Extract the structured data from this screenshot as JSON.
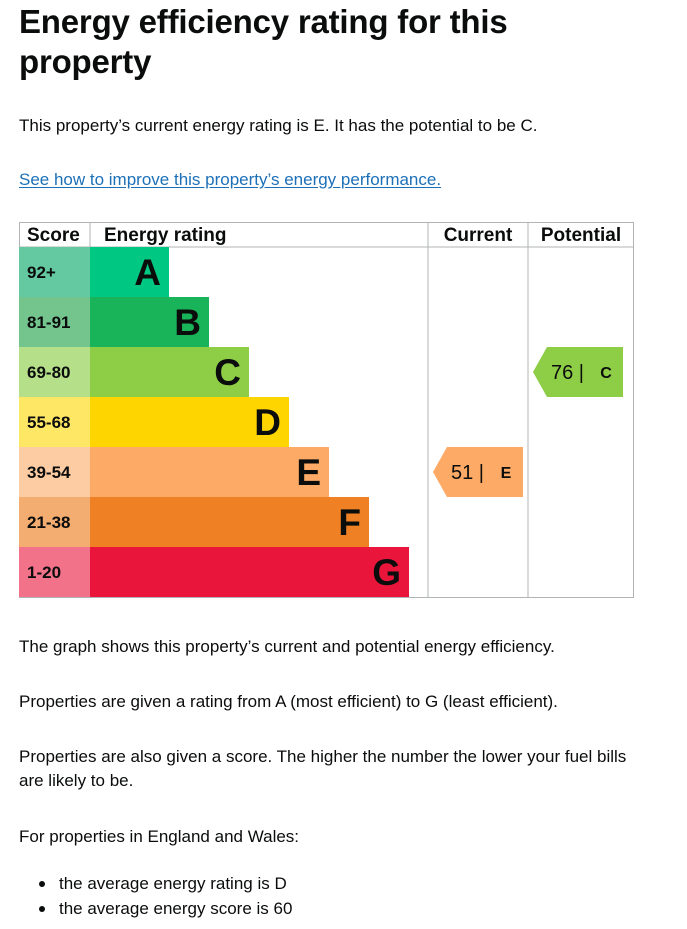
{
  "heading": "Energy efficiency rating for this property",
  "intro": "This property’s current energy rating is E. It has the potential to be C.",
  "improve_link": "See how to improve this property’s energy performance.",
  "chart_data": {
    "type": "table",
    "headers": {
      "score": "Score",
      "rating": "Energy rating",
      "current": "Current",
      "potential": "Potential"
    },
    "bands": [
      {
        "letter": "A",
        "range": "92+",
        "color": "#00c781",
        "score_bg": "#64c8a1"
      },
      {
        "letter": "B",
        "range": "81-91",
        "color": "#19b459",
        "score_bg": "#73c48d"
      },
      {
        "letter": "C",
        "range": "69-80",
        "color": "#8dce46",
        "score_bg": "#b6df8a"
      },
      {
        "letter": "D",
        "range": "55-68",
        "color": "#ffd500",
        "score_bg": "#ffe766"
      },
      {
        "letter": "E",
        "range": "39-54",
        "color": "#fcaa65",
        "score_bg": "#fdccA3"
      },
      {
        "letter": "F",
        "range": "21-38",
        "color": "#ef8023",
        "score_bg": "#f4ad70"
      },
      {
        "letter": "G",
        "range": "1-20",
        "color": "#e9153b",
        "score_bg": "#f27389"
      }
    ],
    "current": {
      "score": 51,
      "letter": "E",
      "text": "51 |",
      "color": "#fcaa65"
    },
    "potential": {
      "score": 76,
      "letter": "C",
      "text": "76 |",
      "color": "#8dce46"
    }
  },
  "explanation_1": "The graph shows this property’s current and potential energy efficiency.",
  "explanation_2": "Properties are given a rating from A (most efficient) to G (least efficient).",
  "explanation_3": "Properties are also given a score. The higher the number the lower your fuel bills are likely to be.",
  "england_wales": "For properties in England and Wales:",
  "bullets": [
    "the average energy rating is D",
    "the average energy score is 60"
  ]
}
